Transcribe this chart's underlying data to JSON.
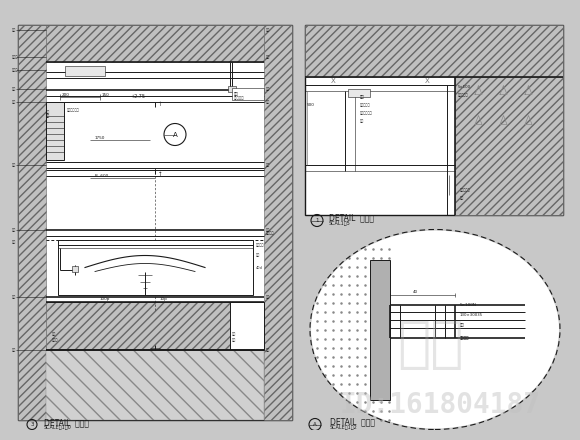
{
  "bg_color": "#c8c8c8",
  "fig_bg": "#c8c8c8",
  "line_color": "#1a1a1a",
  "hatch_lc": "#555555",
  "watermark_text": "知末",
  "watermark_color": "#aaaaaa",
  "id_text": "ID:161804187",
  "id_color": "#bbbbbb",
  "detail_label1": "DETAIL  大样图",
  "detail_scale1": "SCALE：1：0",
  "detail_label2": "DETAIL  大样图",
  "detail_scale2": "SCAL1：5",
  "detail_label3": "DETAIL  大样图",
  "detail_scale3": "SCALE：1：2"
}
